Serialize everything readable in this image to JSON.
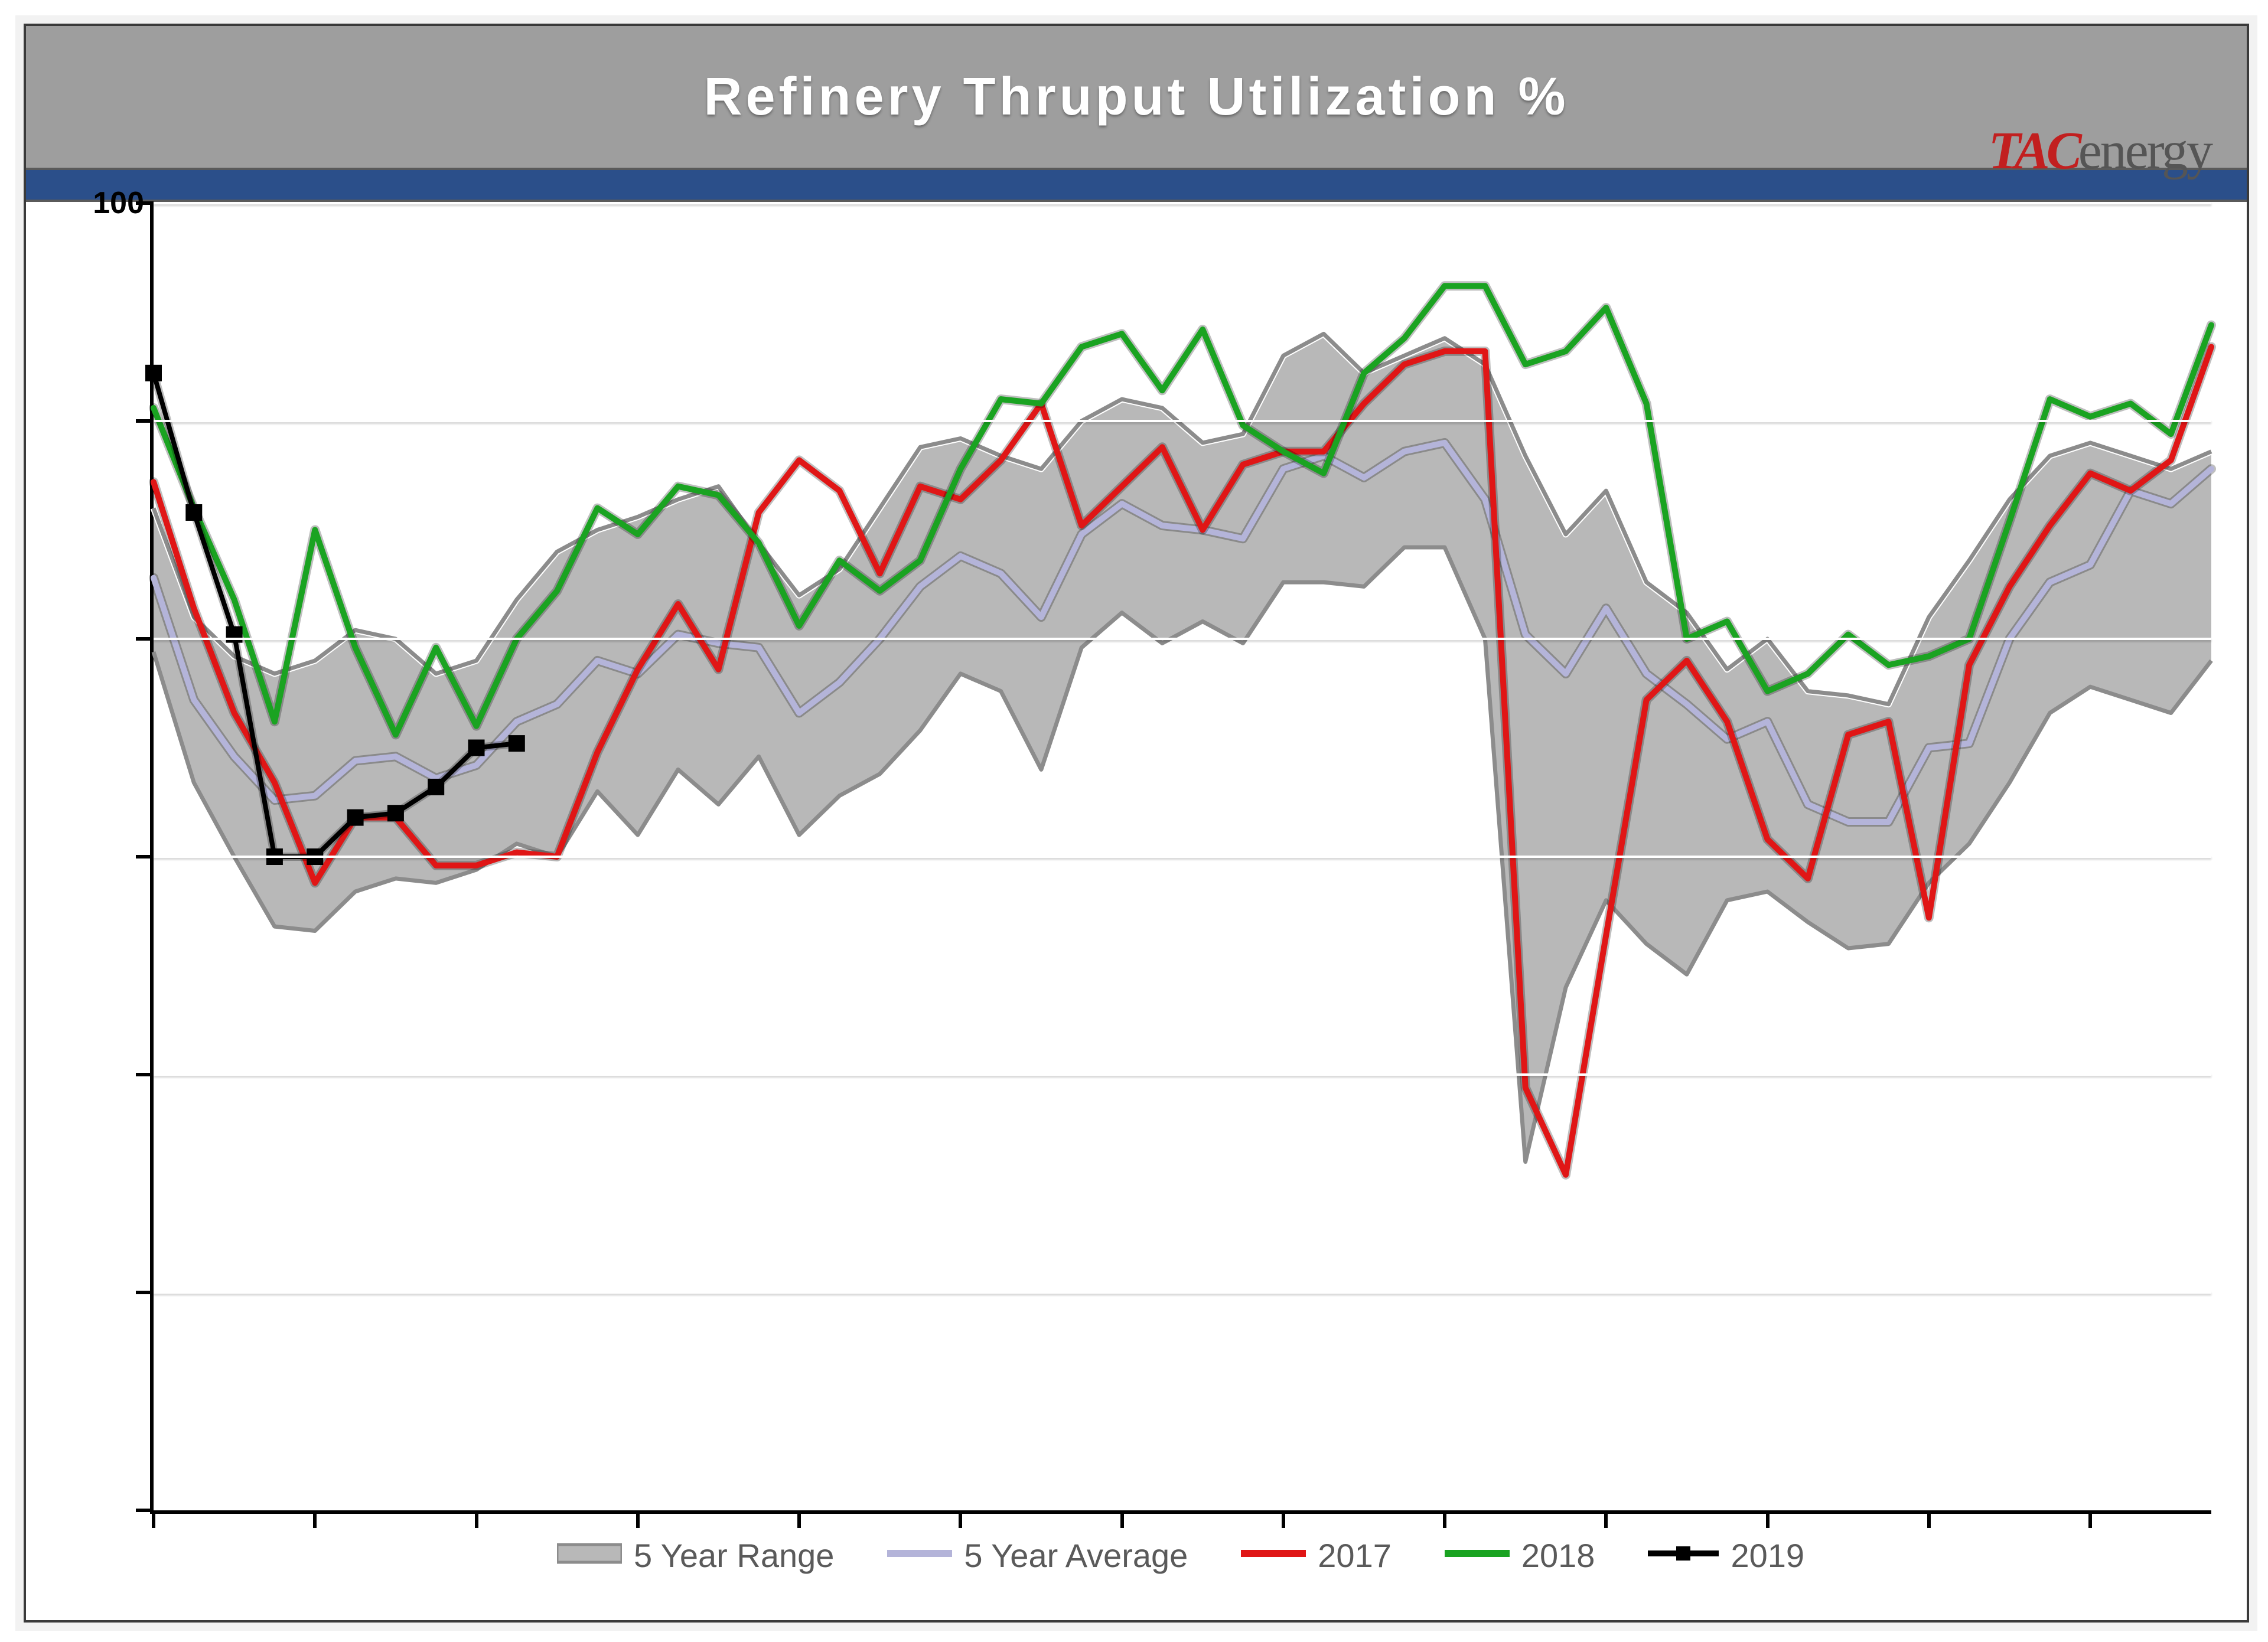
{
  "chart": {
    "type": "line",
    "title": "Refinery Thruput Utilization %",
    "brand": {
      "prefix": "TAC",
      "suffix": "energy",
      "prefix_color": "#c21f1f",
      "suffix_color": "#555555"
    },
    "background_color": "#ffffff",
    "titlebar_color": "#9e9e9e",
    "bluebar_color": "#2b4f8a",
    "axis_color": "#000000",
    "gridline_color": "#ffffff",
    "title_fontsize": 90,
    "title_color": "#ffffff",
    "ylim": [
      70,
      100
    ],
    "ytick_step": 5,
    "ytick_positions": [
      70,
      75,
      80,
      85,
      90,
      95,
      100
    ],
    "ylabel_visible": "100",
    "xlim": [
      1,
      52
    ],
    "xtick_step": 4,
    "weeks": [
      1,
      2,
      3,
      4,
      5,
      6,
      7,
      8,
      9,
      10,
      11,
      12,
      13,
      14,
      15,
      16,
      17,
      18,
      19,
      20,
      21,
      22,
      23,
      24,
      25,
      26,
      27,
      28,
      29,
      30,
      31,
      32,
      33,
      34,
      35,
      36,
      37,
      38,
      39,
      40,
      41,
      42,
      43,
      44,
      45,
      46,
      47,
      48,
      49,
      50,
      51,
      52
    ],
    "series": {
      "range": {
        "label": "5 Year Range",
        "fill": "#b8b8b8",
        "stroke": "#8c8c8c",
        "stroke_width": 7,
        "high": [
          93.0,
          90.5,
          89.6,
          89.2,
          89.5,
          90.2,
          90.0,
          89.2,
          89.5,
          90.9,
          92.0,
          92.5,
          92.8,
          93.2,
          93.5,
          92.2,
          91.0,
          91.6,
          93.0,
          94.4,
          94.6,
          94.2,
          93.9,
          95.0,
          95.5,
          95.3,
          94.5,
          94.7,
          96.5,
          97.0,
          96.1,
          96.5,
          96.9,
          96.3,
          94.2,
          92.4,
          93.4,
          91.3,
          90.6,
          89.3,
          90.0,
          88.8,
          88.7,
          88.5,
          90.5,
          91.8,
          93.2,
          94.2,
          94.5,
          94.2,
          93.9,
          94.3
        ],
        "low": [
          89.7,
          86.7,
          85.0,
          83.4,
          83.3,
          84.2,
          84.5,
          84.4,
          84.7,
          85.3,
          85.0,
          86.5,
          85.5,
          87.0,
          86.2,
          87.3,
          85.5,
          86.4,
          86.9,
          87.9,
          89.2,
          88.8,
          87.0,
          89.8,
          90.6,
          89.9,
          90.4,
          89.9,
          91.3,
          91.3,
          91.2,
          92.1,
          92.1,
          90.0,
          78.0,
          82.0,
          84.0,
          83.0,
          82.3,
          84.0,
          84.2,
          83.5,
          82.9,
          83.0,
          84.4,
          85.3,
          86.7,
          88.3,
          88.9,
          88.6,
          88.3,
          89.5
        ]
      },
      "avg": {
        "label": "5 Year Average",
        "color": "#b4b4d9",
        "width": 10,
        "values": [
          91.4,
          88.6,
          87.3,
          86.3,
          86.4,
          87.2,
          87.3,
          86.8,
          87.1,
          88.1,
          88.5,
          89.5,
          89.2,
          90.1,
          89.9,
          89.8,
          88.3,
          89.0,
          90.0,
          91.2,
          91.9,
          91.5,
          90.5,
          92.4,
          93.1,
          92.6,
          92.5,
          92.3,
          93.9,
          94.2,
          93.7,
          94.3,
          94.5,
          93.2,
          90.1,
          89.2,
          90.7,
          89.2,
          88.5,
          87.7,
          88.1,
          86.2,
          85.8,
          85.8,
          87.5,
          87.6,
          90.0,
          91.3,
          91.7,
          93.4,
          93.1,
          93.9
        ]
      },
      "y2017": {
        "label": "2017",
        "color": "#e01616",
        "width": 10,
        "values": [
          93.6,
          90.7,
          88.3,
          86.7,
          84.4,
          85.9,
          85.9,
          84.8,
          84.8,
          85.1,
          85.0,
          87.4,
          89.3,
          90.8,
          89.3,
          92.9,
          94.1,
          93.4,
          91.5,
          93.5,
          93.2,
          94.1,
          95.4,
          92.6,
          93.5,
          94.4,
          92.5,
          94.0,
          94.3,
          94.3,
          95.4,
          96.3,
          96.6,
          96.6,
          79.7,
          77.7,
          83.2,
          88.6,
          89.5,
          88.1,
          85.4,
          84.5,
          87.8,
          88.1,
          83.6,
          89.4,
          91.2,
          92.6,
          93.8,
          93.4,
          94.1,
          96.7
        ]
      },
      "y2018": {
        "label": "2018",
        "color": "#1aa321",
        "width": 10,
        "values": [
          95.3,
          93.0,
          90.9,
          88.1,
          92.5,
          89.8,
          87.8,
          89.8,
          88.0,
          90.0,
          91.1,
          93.0,
          92.4,
          93.5,
          93.3,
          92.2,
          90.3,
          91.8,
          91.1,
          91.8,
          93.9,
          95.5,
          95.4,
          96.7,
          97.0,
          95.7,
          97.1,
          94.9,
          94.3,
          93.8,
          96.1,
          96.9,
          98.1,
          98.1,
          96.3,
          96.6,
          97.6,
          95.4,
          90.0,
          90.4,
          88.8,
          89.2,
          90.1,
          89.4,
          89.6,
          90.0,
          92.7,
          95.5,
          95.1,
          95.4,
          94.7,
          97.2
        ]
      },
      "y2019": {
        "label": "2019",
        "color": "#000000",
        "width": 8,
        "marker": "square",
        "marker_size": 28,
        "values": [
          96.1,
          92.9,
          90.1,
          85.0,
          85.0,
          85.9,
          86.0,
          86.6,
          87.5,
          87.6
        ]
      }
    },
    "legend": {
      "label_fontsize": 56,
      "label_color": "#5a5a5a",
      "order": [
        "range",
        "avg",
        "y2017",
        "y2018",
        "y2019"
      ],
      "text": {
        "range": "5 Year Range",
        "avg": "5 Year Average",
        "y2017": "2017",
        "y2018": "2018",
        "y2019": "2019"
      }
    }
  }
}
